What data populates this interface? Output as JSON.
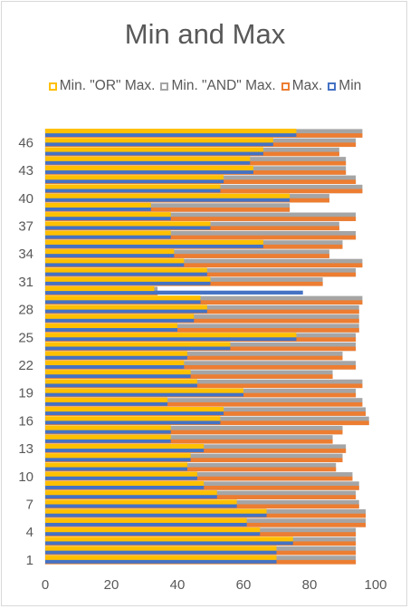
{
  "chart_data": {
    "type": "bar",
    "orientation": "horizontal",
    "title": "Min and Max",
    "xlim": [
      0,
      100
    ],
    "x_ticks": [
      "0",
      "20",
      "40",
      "60",
      "80",
      "100"
    ],
    "y_tick_labels": [
      "1",
      "4",
      "7",
      "10",
      "13",
      "16",
      "19",
      "22",
      "25",
      "28",
      "31",
      "34",
      "37",
      "40",
      "43",
      "46"
    ],
    "y_tick_categories": [
      1,
      4,
      7,
      10,
      13,
      16,
      19,
      22,
      25,
      28,
      31,
      34,
      37,
      40,
      43,
      46
    ],
    "categories": [
      1,
      2,
      3,
      4,
      5,
      6,
      7,
      8,
      9,
      10,
      11,
      12,
      13,
      14,
      15,
      16,
      17,
      18,
      19,
      20,
      21,
      22,
      23,
      24,
      25,
      26,
      27,
      28,
      29,
      30,
      31,
      32,
      33,
      34,
      35,
      36,
      37,
      38,
      39,
      40,
      41,
      42,
      43,
      44,
      45,
      46,
      47
    ],
    "legend_position": "top",
    "grid": false,
    "series": [
      {
        "name": "Min. \"OR\" Max.",
        "color": "#ffc000",
        "values": [
          70,
          70,
          75,
          65,
          61,
          67,
          58,
          52,
          48,
          46,
          43,
          44,
          48,
          38,
          38,
          53,
          54,
          37,
          60,
          46,
          44,
          42,
          43,
          56,
          76,
          40,
          45,
          49,
          47,
          33,
          50,
          49,
          42,
          39,
          66,
          38,
          50,
          38,
          32,
          74,
          53,
          54,
          63,
          62,
          66,
          69,
          76
        ]
      },
      {
        "name": "Min. \"AND\" Max.",
        "color": "#a5a5a5",
        "values": [
          94,
          94,
          94,
          94,
          97,
          97,
          95,
          94,
          95,
          93,
          88,
          90,
          91,
          87,
          90,
          98,
          97,
          96,
          94,
          96,
          87,
          94,
          90,
          94,
          94,
          95,
          95,
          95,
          96,
          34,
          84,
          94,
          96,
          86,
          90,
          94,
          89,
          94,
          74,
          86,
          96,
          94,
          91,
          91,
          89,
          94,
          96
        ]
      },
      {
        "name": "Max.",
        "color": "#ed7d31",
        "values": [
          94,
          94,
          94,
          94,
          97,
          97,
          95,
          94,
          95,
          93,
          88,
          90,
          91,
          87,
          90,
          98,
          97,
          96,
          94,
          96,
          87,
          94,
          90,
          94,
          94,
          95,
          95,
          95,
          96,
          34,
          84,
          94,
          96,
          86,
          90,
          94,
          89,
          94,
          74,
          86,
          96,
          94,
          91,
          91,
          89,
          94,
          96
        ]
      },
      {
        "name": "Min",
        "color": "#4472c4",
        "values": [
          70,
          70,
          75,
          65,
          61,
          67,
          58,
          52,
          48,
          46,
          43,
          44,
          48,
          38,
          38,
          53,
          54,
          37,
          60,
          46,
          44,
          42,
          43,
          56,
          76,
          40,
          45,
          49,
          47,
          78,
          50,
          49,
          42,
          39,
          66,
          38,
          50,
          38,
          32,
          74,
          53,
          54,
          63,
          62,
          66,
          69,
          76
        ]
      }
    ]
  }
}
